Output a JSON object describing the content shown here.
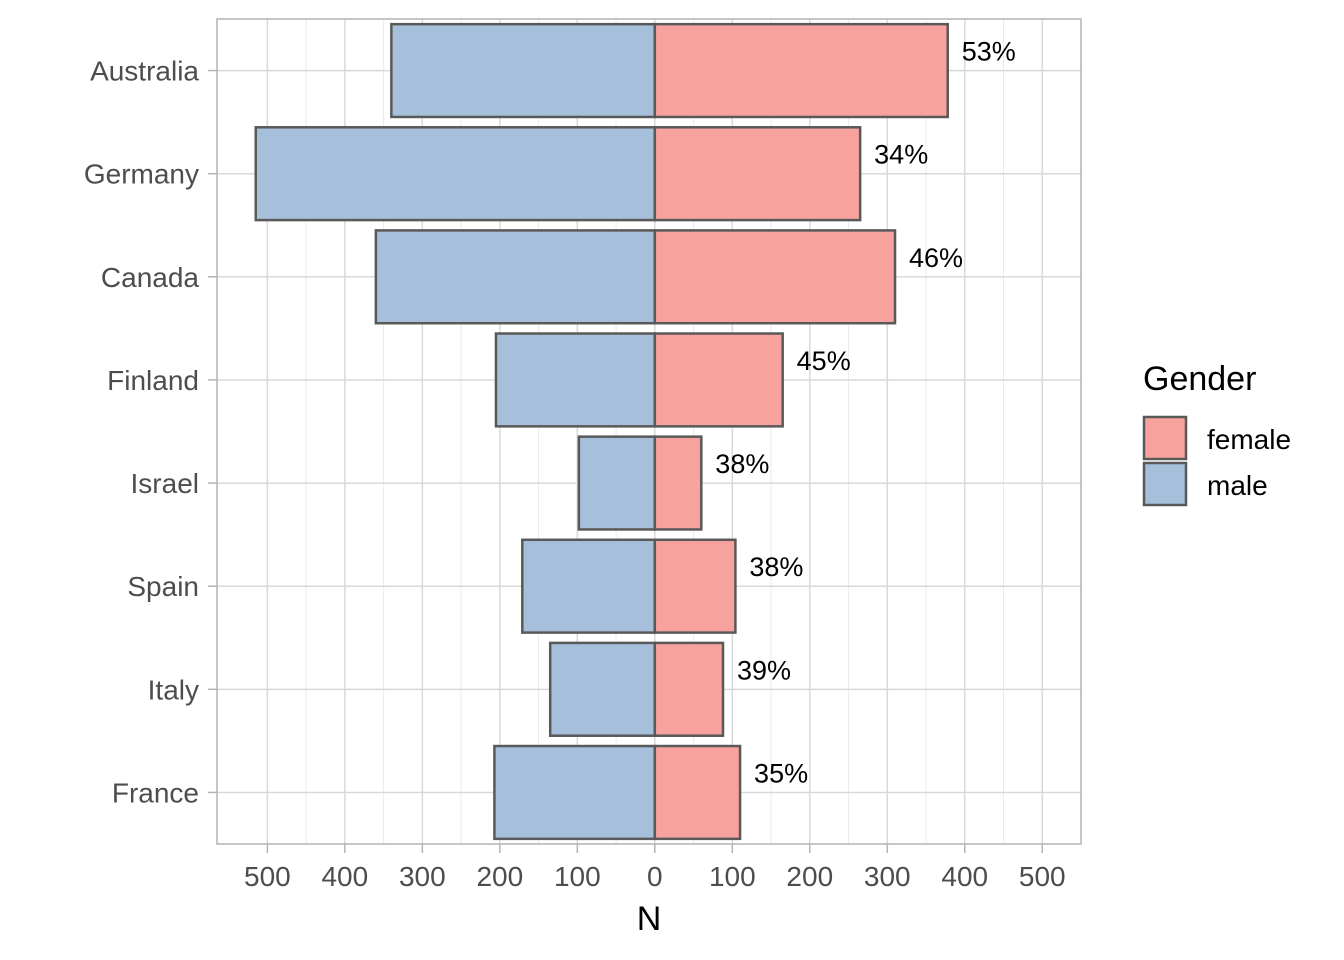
{
  "chart_data": {
    "type": "bar",
    "orientation": "horizontal-diverging",
    "categories": [
      "Australia",
      "Germany",
      "Canada",
      "Finland",
      "Israel",
      "Spain",
      "Italy",
      "France"
    ],
    "series": [
      {
        "name": "female",
        "color": "#f8a29e",
        "values": [
          378,
          265,
          310,
          165,
          60,
          104,
          88,
          110
        ]
      },
      {
        "name": "male",
        "color": "#a6bfdb",
        "values": [
          340,
          515,
          360,
          205,
          98,
          171,
          135,
          207
        ]
      }
    ],
    "female_percent_labels": [
      "53%",
      "34%",
      "46%",
      "45%",
      "38%",
      "38%",
      "39%",
      "35%"
    ],
    "xlabel": "N",
    "ylabel": "",
    "x_ticks": [
      -500,
      -400,
      -300,
      -200,
      -100,
      0,
      100,
      200,
      300,
      400,
      500
    ],
    "x_tick_labels": [
      "500",
      "400",
      "300",
      "200",
      "100",
      "0",
      "100",
      "200",
      "300",
      "400",
      "500"
    ],
    "xlim": [
      -565,
      550
    ],
    "grid": true,
    "legend": {
      "title": "Gender",
      "placement": "right",
      "entries": [
        "female",
        "male"
      ]
    },
    "bar_outline_color": "#595959"
  }
}
